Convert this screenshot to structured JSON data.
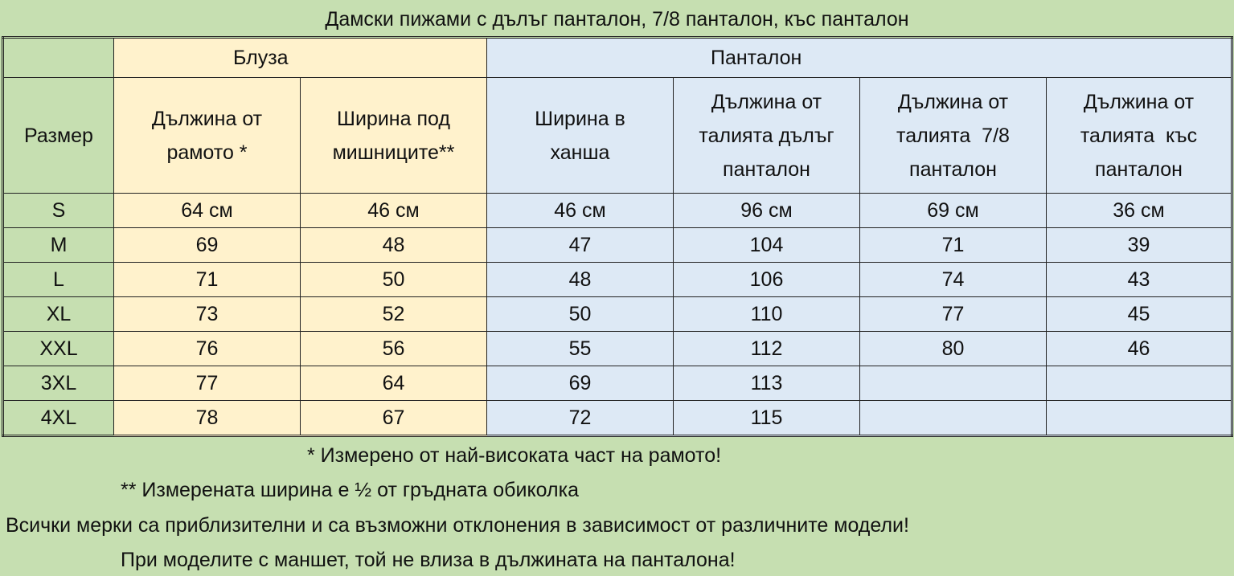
{
  "title": "Дамски пижами с дълъг панталон, 7/8 панталон, къс панталон",
  "colors": {
    "background": "#c6dfb1",
    "blouse": "#fff2cc",
    "pants": "#dde9f5"
  },
  "groups": {
    "blouse": "Блуза",
    "pants": "Панталон"
  },
  "headers": [
    "Размер",
    "Дължина от рамото *",
    "Ширина под мишниците**",
    "Ширина в ханша",
    "Дължина от талията дълъг панталон",
    "Дължина от талията  7/8 панталон",
    "Дължина от талията  къс панталон"
  ],
  "rows": [
    [
      "S",
      "64 см",
      "46 см",
      "46 см",
      "96 см",
      "69 см",
      "36 см"
    ],
    [
      "M",
      "69",
      "48",
      "47",
      "104",
      "71",
      "39"
    ],
    [
      "L",
      "71",
      "50",
      "48",
      "106",
      "74",
      "43"
    ],
    [
      "XL",
      "73",
      "52",
      "50",
      "110",
      "77",
      "45"
    ],
    [
      "XXL",
      "76",
      "56",
      "55",
      "112",
      "80",
      "46"
    ],
    [
      "3XL",
      "77",
      "64",
      "69",
      "113",
      "",
      ""
    ],
    [
      "4XL",
      "78",
      "67",
      "72",
      "115",
      "",
      ""
    ]
  ],
  "notes": [
    "* Измерено от най-високата част на рамото!",
    "** Измерената ширина е ½ от гръдната обиколка",
    "Всички мерки са приблизителни и са възможни отклонения в зависимост от различните  модели!",
    "При моделите с маншет, той не влиза в дължината на панталона!"
  ]
}
